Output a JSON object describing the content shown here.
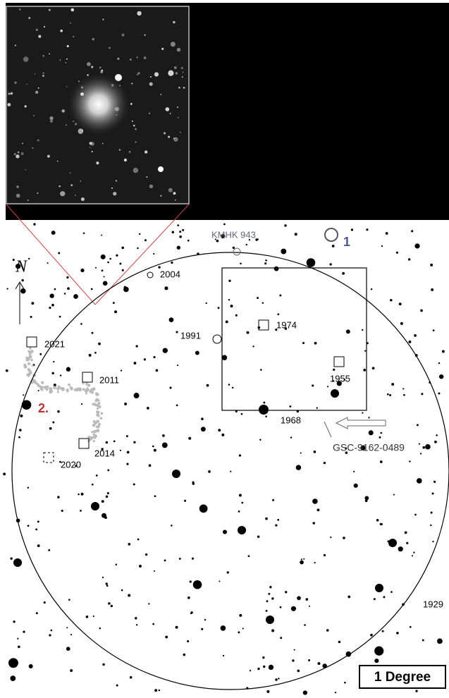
{
  "labels": {
    "north": "N",
    "cluster": "KMHK 943",
    "marker1": "1",
    "marker2": "2.",
    "y2004": "2004",
    "y2021": "2021",
    "y2011": "2011",
    "y2014": "2014",
    "y2020": "2020",
    "y1991": "1991",
    "y1974": "1974",
    "y1955": "1955",
    "y1968": "1968",
    "star": "GSC-9162-0489",
    "y1929": "1929",
    "scale": "1 Degree"
  }
}
